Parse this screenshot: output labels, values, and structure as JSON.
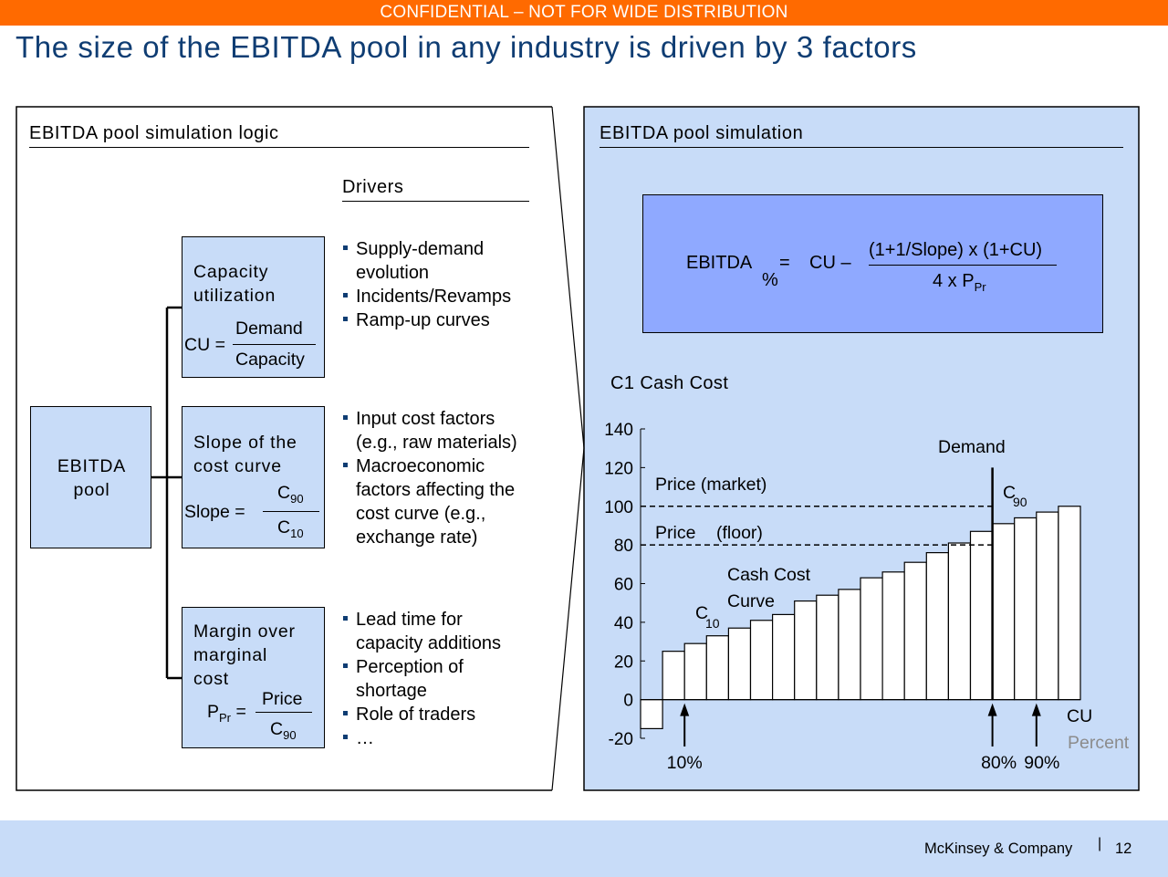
{
  "banner": "CONFIDENTIAL – NOT FOR WIDE DISTRIBUTION",
  "title": "The size of the EBITDA pool in any industry is driven by 3 factors",
  "left_panel": {
    "heading": "EBITDA pool simulation logic",
    "drivers_heading": "Drivers",
    "pool_box": {
      "line1": "EBITDA",
      "line2": "pool"
    },
    "factors": [
      {
        "line1": "Capacity",
        "line2": "utilization",
        "formula_lhs": "CU =",
        "numerator": "Demand",
        "denominator": "Capacity",
        "drivers": [
          "Supply-demand evolution",
          "Incidents/Revamps",
          "Ramp-up curves"
        ]
      },
      {
        "line1": "Slope of the",
        "line2": "cost curve",
        "formula_lhs": "Slope =",
        "numerator": "C",
        "numerator_sub": "90",
        "denominator": "C",
        "denominator_sub": "10",
        "drivers": [
          "Input cost factors (e.g., raw materials)",
          "Macroeconomic factors affecting the cost curve (e.g., exchange rate)"
        ]
      },
      {
        "line1": "Margin over",
        "line2": "marginal",
        "line3": "cost",
        "formula_lhs": "P",
        "formula_lhs_sub": "Pr",
        "formula_eq": "=",
        "numerator": "Price",
        "denominator": "C",
        "denominator_sub": "90",
        "drivers": [
          "Lead time for capacity additions",
          "Perception of shortage",
          "Role of traders",
          "…"
        ]
      }
    ]
  },
  "right_panel": {
    "heading": "EBITDA pool simulation",
    "formula": {
      "lhs": "EBITDA",
      "lhs_sub": "%",
      "eq": "=",
      "cu_term": "CU –",
      "numerator": "(1+1/Slope) x (1+CU)",
      "denominator": "4 x P",
      "denominator_sub": "Pr"
    }
  },
  "chart_data": {
    "type": "bar",
    "title": "C1 Cash Cost",
    "ylim": [
      -20,
      140
    ],
    "y_ticks": [
      140,
      120,
      100,
      80,
      60,
      40,
      20,
      0,
      -20
    ],
    "x_axis_label": "CU",
    "x_unit": "Percent",
    "values": [
      -15,
      25,
      29,
      33,
      37,
      41,
      44,
      51,
      54,
      57,
      63,
      66,
      71,
      76,
      81,
      87,
      91,
      94,
      97,
      100
    ],
    "price_market": 100,
    "price_floor": 80,
    "demand_share": 0.8,
    "labels": {
      "price_market": "Price (market)",
      "price_floor": "Price",
      "price_floor_suffix": "(floor)",
      "demand": "Demand",
      "cash_cost_line1": "Cash Cost",
      "cash_cost_line2": "Curve",
      "c10": "C",
      "c10_sub": "10",
      "c90": "C",
      "c90_sub": "90"
    },
    "markers": [
      "10%",
      "80%",
      "90%"
    ]
  },
  "footer": {
    "company": "McKinsey & Company",
    "separator": "|",
    "page": "12"
  }
}
